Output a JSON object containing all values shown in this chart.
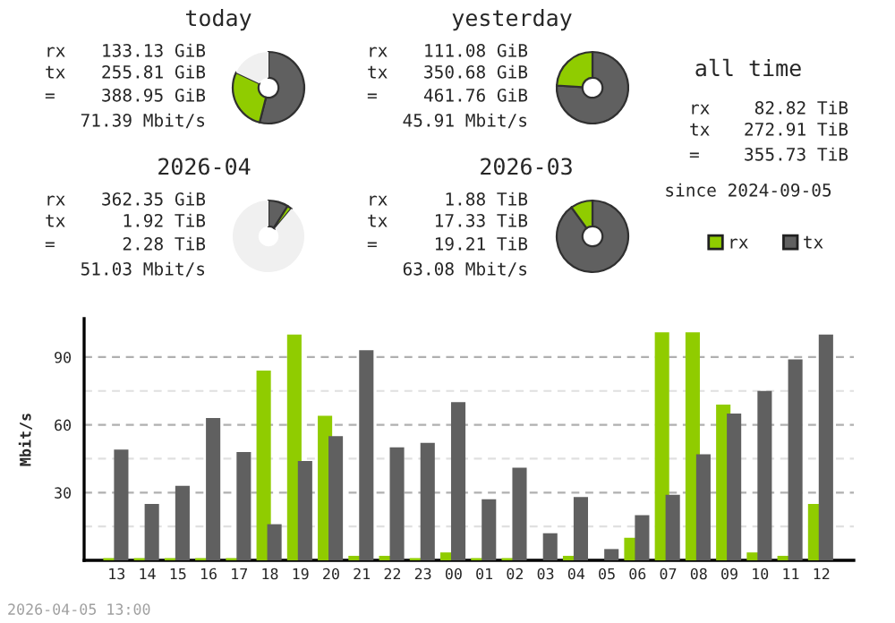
{
  "chart_data": [
    {
      "type": "donut",
      "title": "today",
      "categories": [
        null,
        null,
        null
      ],
      "values": [
        54,
        28,
        18
      ],
      "colors": [
        "#606060",
        "#90cc00",
        "#f0f0f0"
      ],
      "annotations": [
        "rx",
        "133.13 GiB",
        "tx",
        "255.81 GiB",
        "=",
        "388.95 GiB",
        "71.39 Mbit/s"
      ]
    },
    {
      "type": "donut",
      "title": "yesterday",
      "categories": [
        null,
        null
      ],
      "values": [
        76,
        24
      ],
      "colors": [
        "#606060",
        "#90cc00"
      ],
      "annotations": [
        "rx",
        "111.08 GiB",
        "tx",
        "350.68 GiB",
        "=",
        "461.76 GiB",
        "45.91 Mbit/s"
      ]
    },
    {
      "type": "other",
      "title": "all time",
      "annotations": [
        "rx",
        "82.82 TiB",
        "tx",
        "272.91 TiB",
        "=",
        "355.73 TiB",
        "since 2024-09-05"
      ]
    },
    {
      "type": "donut",
      "title": "2026-04",
      "categories": [
        null,
        null,
        null
      ],
      "values": [
        9,
        2,
        89
      ],
      "colors": [
        "#606060",
        "#90cc00",
        "#f0f0f0"
      ],
      "annotations": [
        "rx",
        "362.35 GiB",
        "tx",
        "1.92 TiB",
        "=",
        "2.28 TiB",
        "51.03 Mbit/s"
      ]
    },
    {
      "type": "donut",
      "title": "2026-03",
      "categories": [
        null,
        null
      ],
      "values": [
        90,
        10
      ],
      "colors": [
        "#606060",
        "#90cc00"
      ],
      "annotations": [
        "rx",
        "1.88 TiB",
        "tx",
        "17.33 TiB",
        "=",
        "19.21 TiB",
        "63.08 Mbit/s"
      ]
    },
    {
      "type": "bar",
      "ylabel": "Mbit/s",
      "categories": [
        "13",
        "14",
        "15",
        "16",
        "17",
        "18",
        "19",
        "20",
        "21",
        "22",
        "23",
        "00",
        "01",
        "02",
        "03",
        "04",
        "05",
        "06",
        "07",
        "08",
        "09",
        "10",
        "11",
        "12"
      ],
      "series": [
        {
          "name": "rx",
          "color": "#90cc00",
          "values": [
            1,
            1,
            1,
            1,
            1,
            84,
            100,
            64,
            2,
            2,
            1,
            3.5,
            1,
            1,
            0,
            2,
            0,
            10,
            101,
            101,
            69,
            3.5,
            2,
            25
          ]
        },
        {
          "name": "tx",
          "color": "#606060",
          "values": [
            49,
            25,
            33,
            63,
            48,
            16,
            44,
            55,
            93,
            50,
            52,
            70,
            27,
            41,
            12,
            28,
            5,
            20,
            29,
            47,
            65,
            75,
            89,
            100
          ]
        }
      ],
      "ylim": [
        0,
        107
      ],
      "yticks": [
        {
          "value": 0,
          "label": null
        },
        {
          "value": 15,
          "label": null
        },
        30,
        {
          "value": 45,
          "label": null
        },
        60,
        {
          "value": 75,
          "label": null
        },
        90
      ],
      "grid": "y",
      "legend": "top right",
      "annotations": [
        "2026-04-05 13:00"
      ]
    }
  ]
}
